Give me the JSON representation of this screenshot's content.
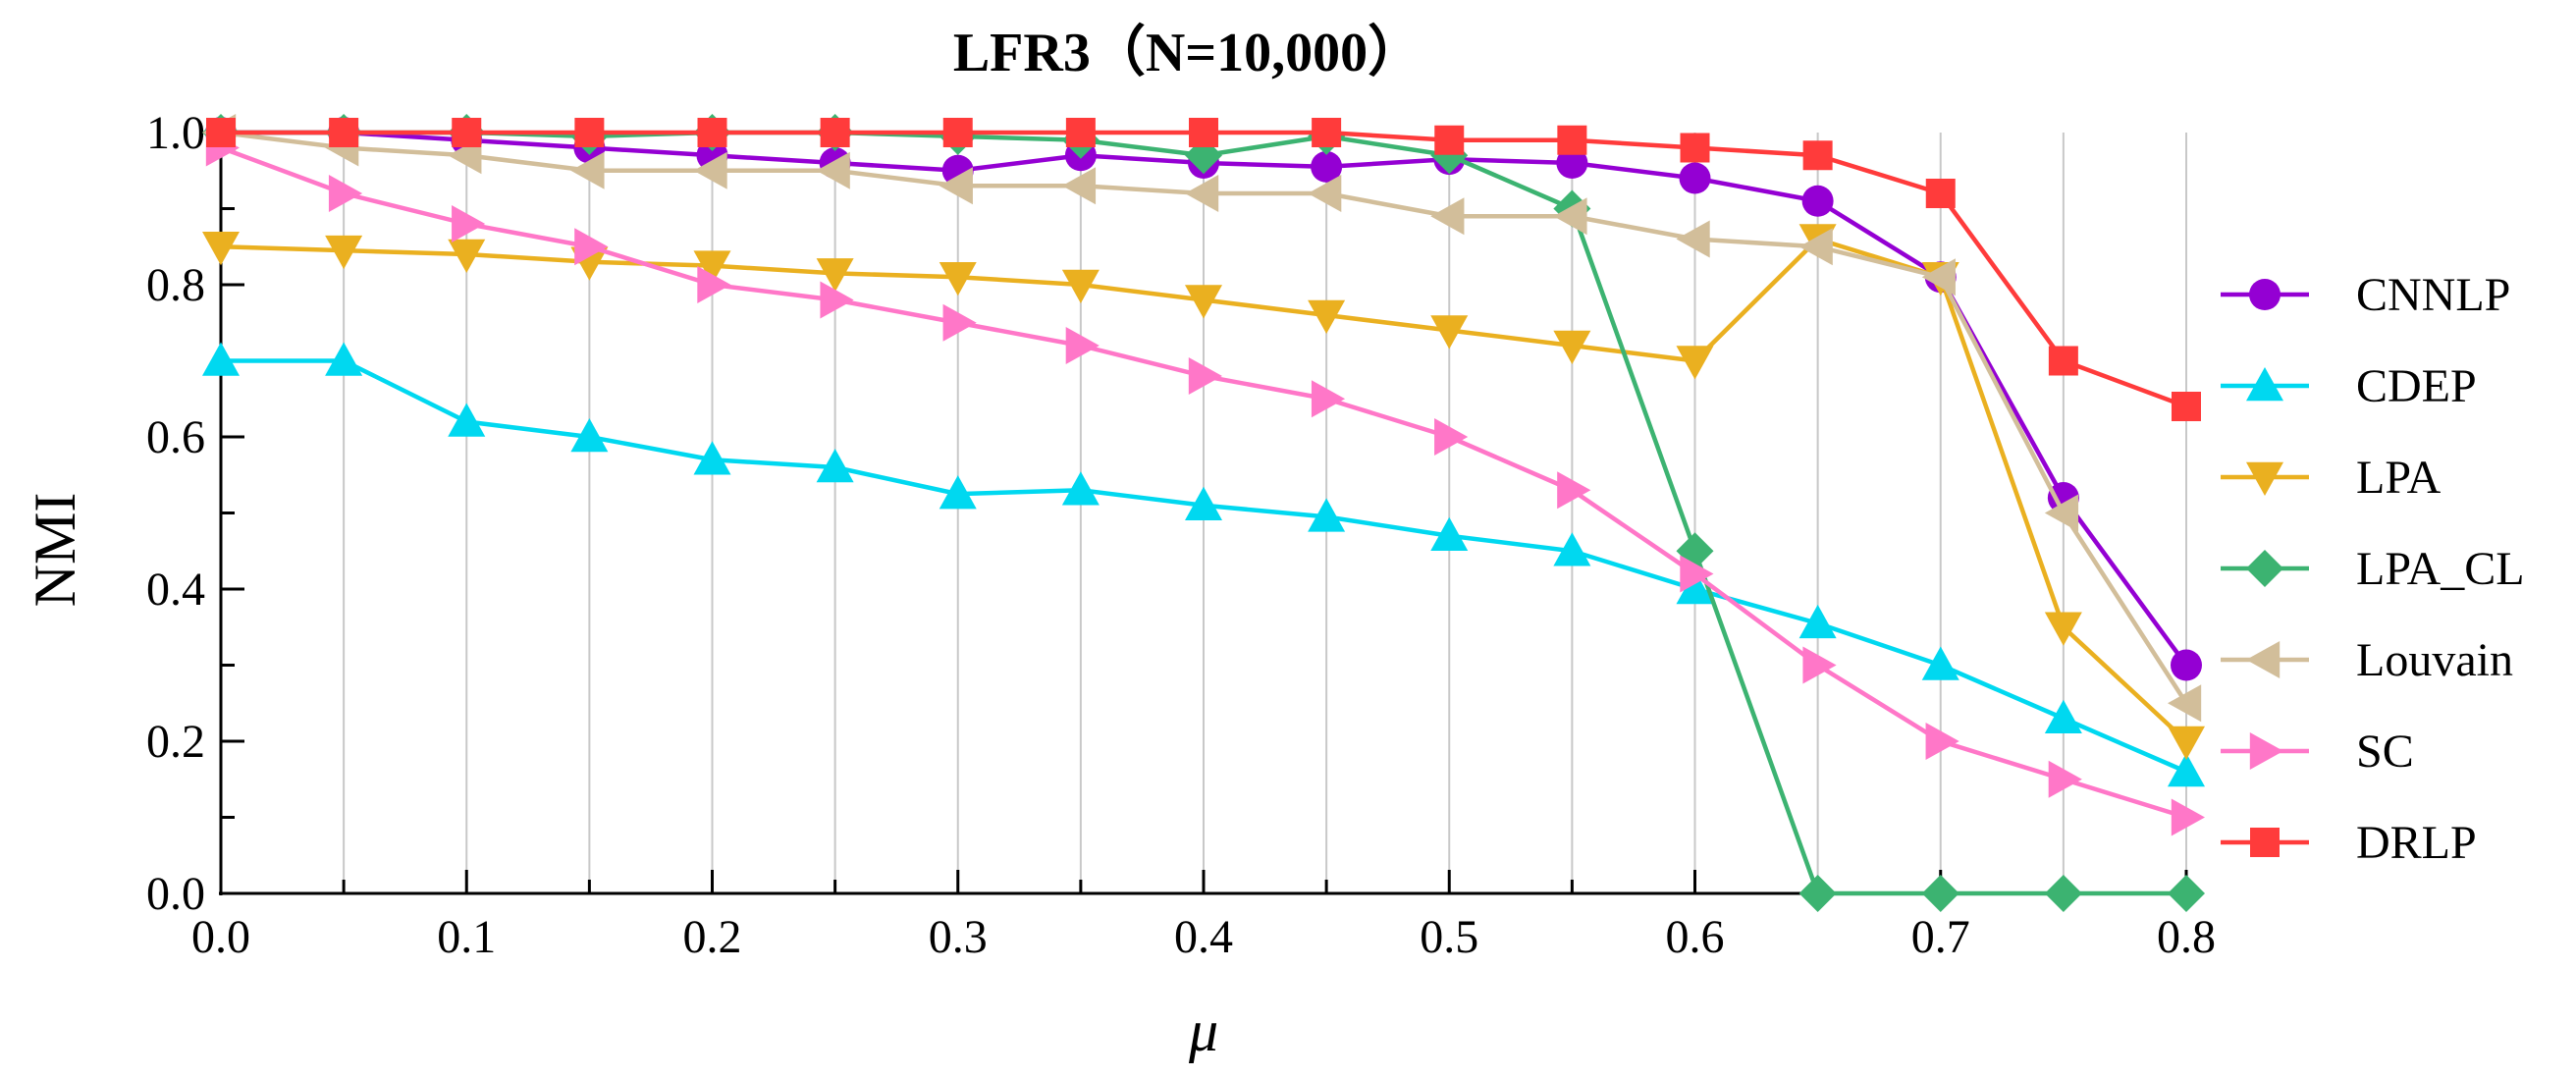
{
  "chart_data": {
    "type": "line",
    "title": "LFR3（N=10,000）",
    "xlabel": "μ",
    "ylabel": "NMI",
    "xlim": [
      0.0,
      0.8
    ],
    "ylim": [
      0.0,
      1.0
    ],
    "x": [
      0.0,
      0.05,
      0.1,
      0.15,
      0.2,
      0.25,
      0.3,
      0.35,
      0.4,
      0.45,
      0.5,
      0.55,
      0.6,
      0.65,
      0.7,
      0.75,
      0.8
    ],
    "x_ticks": [
      "0.0",
      "0.1",
      "0.2",
      "0.3",
      "0.4",
      "0.5",
      "0.6",
      "0.7",
      "0.8"
    ],
    "y_ticks": [
      "0.0",
      "0.2",
      "0.4",
      "0.6",
      "0.8",
      "1.0"
    ],
    "grid": "vertical",
    "legend_position": "right",
    "series": [
      {
        "name": "CNNLP",
        "color": "#9400D3",
        "marker": "circle",
        "values": [
          1.0,
          1.0,
          0.99,
          0.98,
          0.97,
          0.96,
          0.95,
          0.97,
          0.96,
          0.955,
          0.965,
          0.96,
          0.94,
          0.91,
          0.81,
          0.52,
          0.3
        ]
      },
      {
        "name": "CDEP",
        "color": "#00D8F0",
        "marker": "triangle-up",
        "values": [
          0.7,
          0.7,
          0.62,
          0.6,
          0.57,
          0.56,
          0.525,
          0.53,
          0.51,
          0.495,
          0.47,
          0.45,
          0.4,
          0.355,
          0.3,
          0.23,
          0.16
        ]
      },
      {
        "name": "LPA",
        "color": "#EAB020",
        "marker": "triangle-down",
        "values": [
          0.85,
          0.845,
          0.84,
          0.83,
          0.825,
          0.815,
          0.81,
          0.8,
          0.78,
          0.76,
          0.74,
          0.72,
          0.7,
          0.86,
          0.81,
          0.35,
          0.2
        ]
      },
      {
        "name": "LPA_CL",
        "color": "#3CB371",
        "marker": "diamond",
        "values": [
          1.0,
          1.0,
          1.0,
          0.995,
          1.0,
          1.0,
          0.995,
          0.99,
          0.97,
          0.995,
          0.97,
          0.9,
          0.45,
          0.0,
          0.0,
          0.0,
          0.0
        ]
      },
      {
        "name": "Louvain",
        "color": "#D2BE9A",
        "marker": "triangle-left",
        "values": [
          1.0,
          0.98,
          0.97,
          0.95,
          0.95,
          0.95,
          0.93,
          0.93,
          0.92,
          0.92,
          0.89,
          0.89,
          0.86,
          0.85,
          0.81,
          0.5,
          0.25
        ]
      },
      {
        "name": "SC",
        "color": "#FF77C8",
        "marker": "triangle-right",
        "values": [
          0.98,
          0.92,
          0.88,
          0.85,
          0.8,
          0.78,
          0.75,
          0.72,
          0.68,
          0.65,
          0.6,
          0.53,
          0.42,
          0.3,
          0.2,
          0.15,
          0.1
        ]
      },
      {
        "name": "DRLP",
        "color": "#FF3B3B",
        "marker": "square",
        "values": [
          1.0,
          1.0,
          1.0,
          1.0,
          1.0,
          1.0,
          1.0,
          1.0,
          1.0,
          1.0,
          0.99,
          0.99,
          0.98,
          0.97,
          0.92,
          0.7,
          0.64
        ]
      }
    ]
  }
}
